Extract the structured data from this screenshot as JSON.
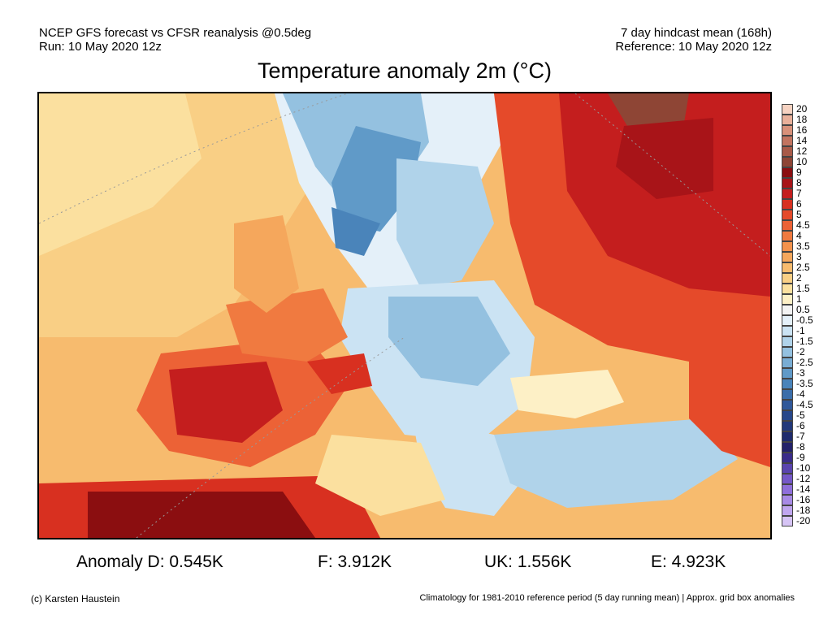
{
  "header": {
    "left_line1": "NCEP GFS forecast vs CFSR reanalysis @0.5deg",
    "left_line2": "Run: 10 May 2020 12z",
    "right_line1": "7 day hindcast mean (168h)",
    "right_line2": "Reference: 10 May 2020 12z"
  },
  "title": "Temperature anomaly 2m (°C)",
  "legend": {
    "labels": [
      "20",
      "18",
      "16",
      "14",
      "12",
      "10",
      "9",
      "8",
      "7",
      "6",
      "5",
      "4.5",
      "4",
      "3.5",
      "3",
      "2.5",
      "2",
      "1.5",
      "1",
      "0.5",
      "-0.5",
      "-1",
      "-1.5",
      "-2",
      "-2.5",
      "-3",
      "-3.5",
      "-4",
      "-4.5",
      "-5",
      "-6",
      "-7",
      "-8",
      "-9",
      "-10",
      "-12",
      "-14",
      "-16",
      "-18",
      "-20"
    ],
    "colors": [
      "#f6d2c1",
      "#e9b09a",
      "#d8917a",
      "#c27460",
      "#a85a48",
      "#8e4535",
      "#8b0e10",
      "#a81418",
      "#c41e1e",
      "#d83020",
      "#e54a2a",
      "#ec6236",
      "#f07a40",
      "#f3924c",
      "#f5a75c",
      "#f7bb6e",
      "#f9cf85",
      "#fbe09f",
      "#fdf0c6",
      "#f3f3f3",
      "#e4f0f9",
      "#cbe3f3",
      "#b0d3ea",
      "#94c1e0",
      "#79add4",
      "#609ac8",
      "#4a84ba",
      "#3b6eaa",
      "#30589a",
      "#27478a",
      "#22387a",
      "#1f2b6c",
      "#23226a",
      "#3a2c8a",
      "#5a44ae",
      "#7558c8",
      "#8f6fdb",
      "#a88ae6",
      "#c0a6ef",
      "#d6c4f5"
    ]
  },
  "anomalies": {
    "d": "Anomaly D: 0.545K",
    "f": "F: 3.912K",
    "uk": "UK: 1.556K",
    "e": "E: 4.923K"
  },
  "footer": {
    "copyright": "(c) Karsten Haustein",
    "note": "Climatology for 1981-2010 reference period (5 day running mean) | Approx. grid box anomalies"
  }
}
